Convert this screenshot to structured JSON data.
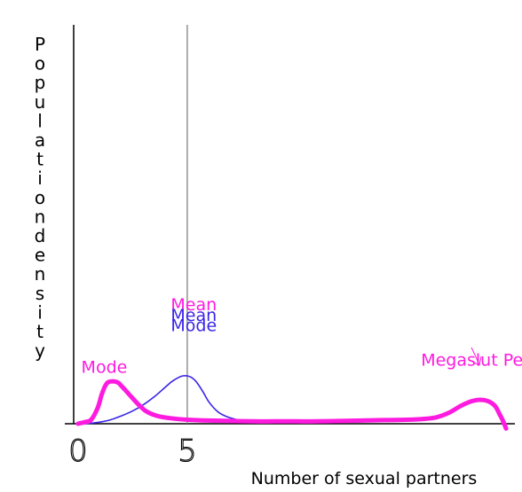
{
  "chart_data": {
    "type": "line",
    "ylabel": "Population density",
    "xlabel": "Number of sexual partners",
    "xticks": [
      {
        "value": 0,
        "label": "0"
      },
      {
        "value": 5,
        "label": "5"
      }
    ],
    "xlim": [
      -0.2,
      19.8
    ],
    "ylim": [
      0,
      1
    ],
    "mean_line_x": 5,
    "colors": {
      "magenta": "#ff1ae0",
      "blue": "#3a24e6",
      "axis": "#000000",
      "meanline": "#777777"
    },
    "series": [
      {
        "color": "#3a24e6",
        "x": [
          0,
          0.5,
          1,
          1.5,
          2,
          2.5,
          3,
          3.5,
          4,
          4.3,
          4.6,
          4.8,
          5,
          5.2,
          5.4,
          5.7,
          6,
          6.4,
          6.8,
          7.3,
          7.8,
          8.3,
          8.8
        ],
        "y": [
          0,
          0.005,
          0.02,
          0.05,
          0.1,
          0.16,
          0.24,
          0.34,
          0.46,
          0.53,
          0.58,
          0.6,
          0.6,
          0.58,
          0.53,
          0.41,
          0.27,
          0.15,
          0.09,
          0.05,
          0.03,
          0.02,
          0.02
        ]
      },
      {
        "color": "#ff1ae0",
        "x": [
          0,
          0.3,
          0.6,
          0.9,
          1.1,
          1.3,
          1.5,
          1.8,
          2.0,
          2.3,
          2.7,
          3.1,
          3.6,
          4.2,
          5,
          6,
          7,
          8,
          9,
          10,
          11,
          12,
          13,
          14,
          15,
          15.8,
          16.4,
          17,
          17.5,
          18,
          18.4,
          18.8,
          19.1,
          19.3,
          19.45,
          19.6
        ],
        "y": [
          0,
          0.02,
          0.05,
          0.2,
          0.38,
          0.5,
          0.53,
          0.52,
          0.47,
          0.38,
          0.26,
          0.16,
          0.1,
          0.07,
          0.05,
          0.04,
          0.035,
          0.03,
          0.03,
          0.03,
          0.03,
          0.035,
          0.04,
          0.045,
          0.05,
          0.06,
          0.08,
          0.14,
          0.22,
          0.28,
          0.3,
          0.28,
          0.22,
          0.12,
          0.04,
          -0.06
        ]
      }
    ],
    "annotations": [
      {
        "text": "Mean",
        "color": "#ff1ae0",
        "x": 5.3,
        "y": 1.42
      },
      {
        "text": "Mean",
        "color": "#3a24e6",
        "x": 5.3,
        "y": 1.29
      },
      {
        "text": "Mode",
        "color": "#3a24e6",
        "x": 5.3,
        "y": 1.16
      },
      {
        "text": "Mode",
        "color": "#ff1ae0",
        "x": 1.2,
        "y": 0.64
      },
      {
        "text": "Megaslut Peak",
        "color": "#ff1ae0",
        "x": 18.5,
        "y": 0.73
      }
    ]
  }
}
